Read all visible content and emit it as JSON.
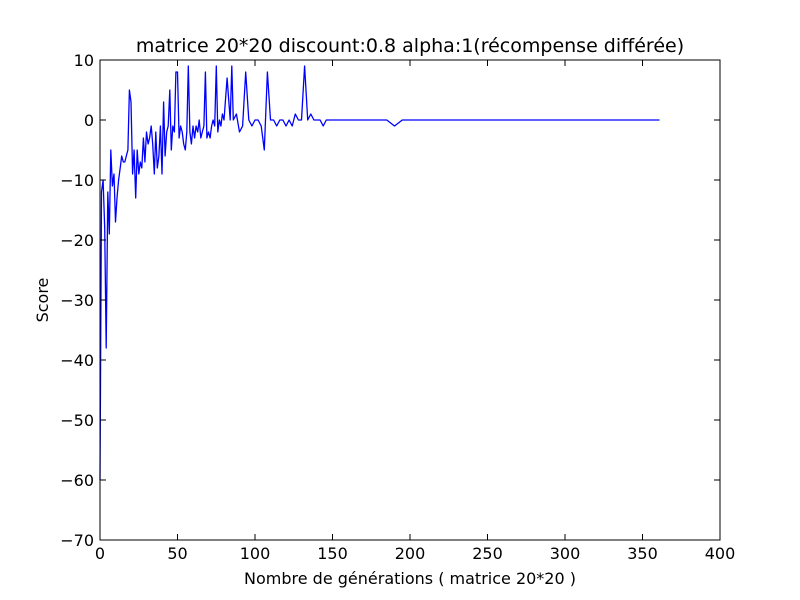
{
  "chart_data": {
    "type": "line",
    "title": "matrice 20*20 discount:0.8 alpha:1(récompense différée)",
    "xlabel": "Nombre de générations ( matrice 20*20 )",
    "ylabel": "Score",
    "xlim": [
      0,
      400
    ],
    "ylim": [
      -70,
      10
    ],
    "xticks": [
      0,
      50,
      100,
      150,
      200,
      250,
      300,
      350,
      400
    ],
    "yticks": [
      10,
      0,
      -10,
      -20,
      -30,
      -40,
      -50,
      -60,
      -70
    ],
    "xtick_labels": [
      "0",
      "50",
      "100",
      "150",
      "200",
      "250",
      "300",
      "350",
      "400"
    ],
    "ytick_labels": [
      "10",
      "0",
      "−10",
      "−20",
      "−30",
      "−40",
      "−50",
      "−60",
      "−70"
    ],
    "grid": false,
    "series_color": "#0000ff",
    "series": [
      {
        "x": [
          0,
          1,
          2,
          3,
          4,
          5,
          6,
          7,
          8,
          9,
          10,
          11,
          12,
          13,
          14,
          15,
          16,
          17,
          18,
          19,
          20,
          21,
          22,
          23,
          24,
          25,
          26,
          27,
          28,
          29,
          30,
          31,
          32,
          33,
          34,
          35,
          36,
          37,
          38,
          39,
          40,
          41,
          42,
          43,
          44,
          45,
          46,
          47,
          48,
          49,
          50,
          51,
          52,
          53,
          54,
          55,
          56,
          57,
          58,
          59,
          60,
          61,
          62,
          63,
          64,
          65,
          66,
          67,
          68,
          69,
          70,
          71,
          72,
          73,
          74,
          75,
          76,
          77,
          78,
          79,
          80,
          82,
          84,
          85,
          86,
          88,
          90,
          92,
          94,
          96,
          98,
          100,
          102,
          104,
          106,
          108,
          110,
          112,
          114,
          116,
          118,
          120,
          122,
          124,
          126,
          128,
          130,
          132,
          134,
          136,
          138,
          140,
          142,
          144,
          146,
          148,
          150,
          152,
          153,
          155,
          160,
          165,
          170,
          175,
          180,
          185,
          190,
          195,
          200,
          205,
          210,
          215,
          220,
          225,
          230,
          235,
          240,
          245,
          250,
          255,
          260,
          265,
          300,
          340,
          361
        ],
        "y": [
          -60,
          -12,
          -10,
          -18,
          -38,
          -12,
          -19,
          -5,
          -11,
          -9,
          -17,
          -13,
          -10,
          -8,
          -6,
          -7,
          -7,
          -6,
          -5,
          5,
          3,
          -9,
          -5,
          -13,
          -5,
          -9,
          -7,
          -8,
          -3,
          -7,
          -2,
          -4,
          -3,
          -1,
          -4,
          -9,
          -2,
          -8,
          -6,
          -1,
          -9,
          3,
          -6,
          -2,
          -1,
          5,
          -5,
          -1,
          -2,
          8,
          8,
          -3,
          -1,
          -2,
          -4,
          -5,
          -2,
          9,
          -2,
          -4,
          -1,
          -3,
          -1,
          -2,
          0,
          -3,
          -2,
          -1,
          8,
          -3,
          -2,
          -3,
          -1,
          0,
          -1,
          9,
          -2,
          0,
          -1,
          1,
          0,
          7,
          0,
          9,
          0,
          1,
          -2,
          -1,
          8,
          0,
          -1,
          0,
          0,
          -1,
          -5,
          8,
          0,
          0,
          -1,
          0,
          0,
          -1,
          0,
          -1,
          1,
          0,
          0,
          9,
          0,
          1,
          0,
          0,
          0,
          -1,
          0,
          0,
          0,
          0,
          0,
          0,
          0,
          0,
          0,
          0,
          0,
          0,
          -1,
          0,
          0,
          0,
          0,
          0,
          0,
          0,
          0,
          0,
          0,
          0,
          0,
          0,
          0,
          0,
          0,
          0,
          0
        ]
      }
    ]
  }
}
